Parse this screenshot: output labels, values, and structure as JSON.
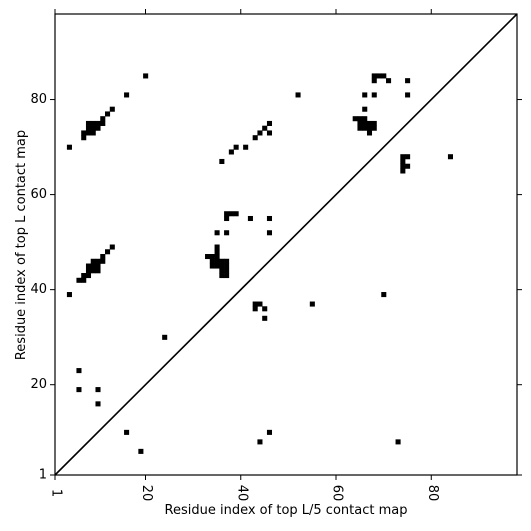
{
  "chart_data": {
    "type": "heatmap",
    "xlabel": "Residue index of top L/5 contact map",
    "ylabel": "Residue index of top L contact map",
    "xlim": [
      1,
      98
    ],
    "ylim": [
      1,
      98
    ],
    "x_ticks": [
      {
        "value": 1,
        "label": "1"
      },
      {
        "value": 20,
        "label": "20"
      },
      {
        "value": 40,
        "label": "40"
      },
      {
        "value": 60,
        "label": "60"
      },
      {
        "value": 80,
        "label": "80"
      }
    ],
    "y_ticks": [
      {
        "value": 1,
        "label": "1"
      },
      {
        "value": 20,
        "label": "20"
      },
      {
        "value": 40,
        "label": "40"
      },
      {
        "value": 60,
        "label": "60"
      },
      {
        "value": 80,
        "label": "80"
      }
    ],
    "diagonal": true,
    "cell_color": "#000000",
    "background_color": "#ffffff",
    "contacts": [
      [
        20,
        85
      ],
      [
        16,
        81
      ],
      [
        52,
        81
      ],
      [
        7,
        73
      ],
      [
        7,
        72
      ],
      [
        8,
        73
      ],
      [
        8,
        74
      ],
      [
        8,
        75
      ],
      [
        9,
        73
      ],
      [
        9,
        74
      ],
      [
        9,
        75
      ],
      [
        10,
        74
      ],
      [
        10,
        75
      ],
      [
        11,
        75
      ],
      [
        11,
        76
      ],
      [
        12,
        77
      ],
      [
        13,
        78
      ],
      [
        4,
        70
      ],
      [
        36,
        67
      ],
      [
        38,
        69
      ],
      [
        39,
        70
      ],
      [
        41,
        70
      ],
      [
        43,
        72
      ],
      [
        44,
        73
      ],
      [
        45,
        74
      ],
      [
        46,
        75
      ],
      [
        46,
        73
      ],
      [
        68,
        85
      ],
      [
        68,
        84
      ],
      [
        69,
        85
      ],
      [
        70,
        85
      ],
      [
        71,
        84
      ],
      [
        75,
        84
      ],
      [
        66,
        81
      ],
      [
        68,
        81
      ],
      [
        75,
        81
      ],
      [
        66,
        78
      ],
      [
        64,
        76
      ],
      [
        65,
        76
      ],
      [
        66,
        76
      ],
      [
        65,
        75
      ],
      [
        66,
        75
      ],
      [
        67,
        75
      ],
      [
        68,
        75
      ],
      [
        65,
        74
      ],
      [
        66,
        74
      ],
      [
        67,
        74
      ],
      [
        68,
        74
      ],
      [
        67,
        73
      ],
      [
        74,
        68
      ],
      [
        75,
        68
      ],
      [
        74,
        67
      ],
      [
        74,
        66
      ],
      [
        75,
        66
      ],
      [
        74,
        65
      ],
      [
        84,
        68
      ],
      [
        37,
        56
      ],
      [
        38,
        56
      ],
      [
        39,
        56
      ],
      [
        37,
        55
      ],
      [
        42,
        55
      ],
      [
        46,
        55
      ],
      [
        35,
        52
      ],
      [
        37,
        52
      ],
      [
        46,
        52
      ],
      [
        13,
        49
      ],
      [
        12,
        48
      ],
      [
        11,
        47
      ],
      [
        10,
        46
      ],
      [
        11,
        46
      ],
      [
        9,
        46
      ],
      [
        8,
        45
      ],
      [
        9,
        45
      ],
      [
        10,
        45
      ],
      [
        8,
        44
      ],
      [
        9,
        44
      ],
      [
        10,
        44
      ],
      [
        7,
        43
      ],
      [
        8,
        43
      ],
      [
        6,
        42
      ],
      [
        7,
        42
      ],
      [
        4,
        39
      ],
      [
        35,
        49
      ],
      [
        35,
        48
      ],
      [
        33,
        47
      ],
      [
        34,
        47
      ],
      [
        35,
        47
      ],
      [
        34,
        46
      ],
      [
        35,
        46
      ],
      [
        36,
        46
      ],
      [
        37,
        46
      ],
      [
        34,
        45
      ],
      [
        35,
        45
      ],
      [
        36,
        45
      ],
      [
        37,
        45
      ],
      [
        36,
        44
      ],
      [
        37,
        44
      ],
      [
        36,
        43
      ],
      [
        37,
        43
      ],
      [
        43,
        37
      ],
      [
        44,
        37
      ],
      [
        43,
        36
      ],
      [
        45,
        36
      ],
      [
        45,
        34
      ],
      [
        55,
        37
      ],
      [
        70,
        39
      ],
      [
        24,
        30
      ],
      [
        6,
        23
      ],
      [
        6,
        19
      ],
      [
        10,
        19
      ],
      [
        10,
        16
      ],
      [
        16,
        10
      ],
      [
        46,
        10
      ],
      [
        44,
        8
      ],
      [
        73,
        8
      ],
      [
        19,
        6
      ]
    ]
  }
}
